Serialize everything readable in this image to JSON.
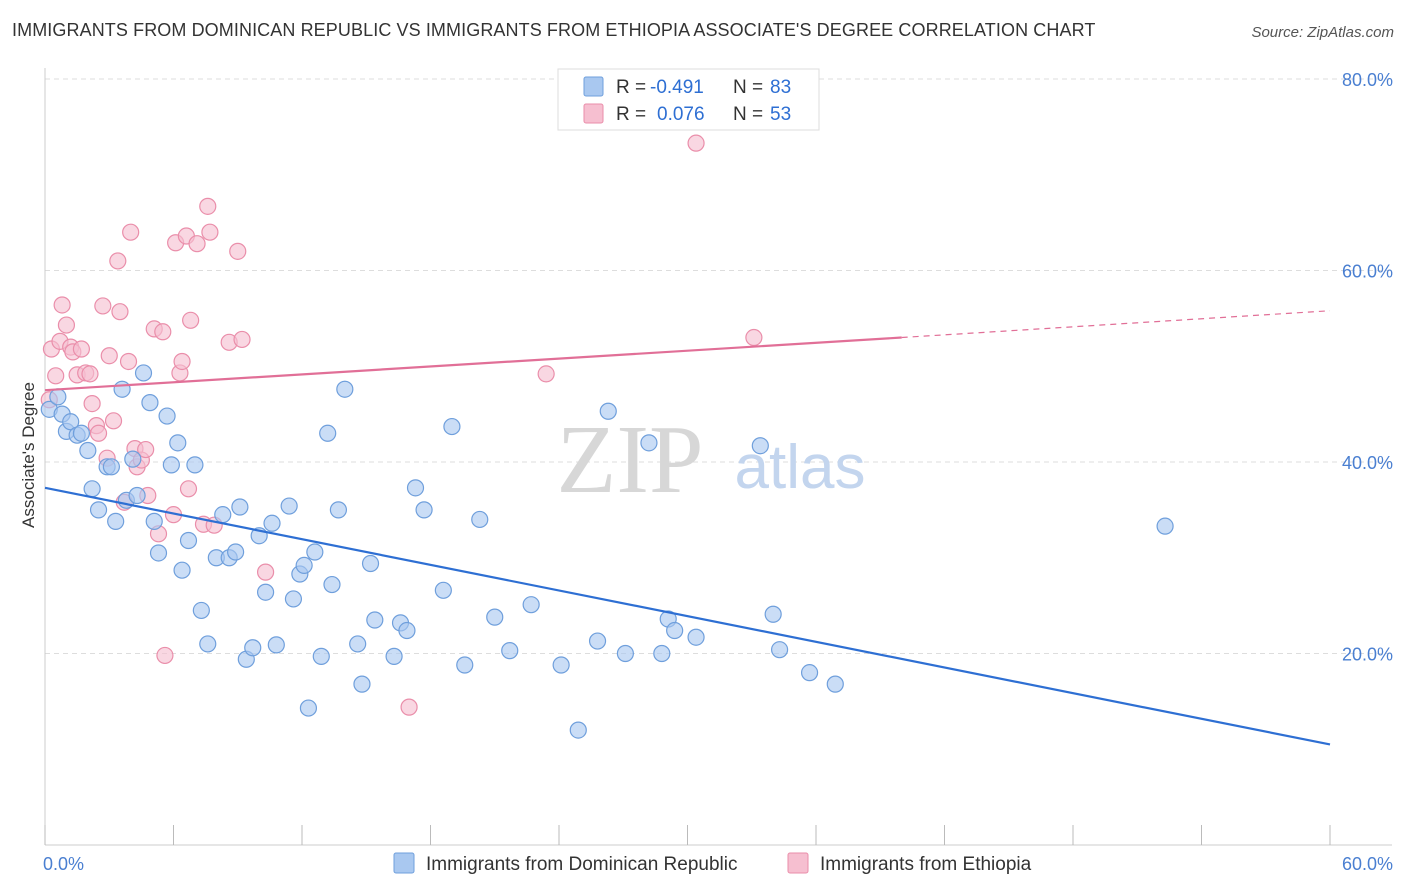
{
  "title": "IMMIGRANTS FROM DOMINICAN REPUBLIC VS IMMIGRANTS FROM ETHIOPIA ASSOCIATE'S DEGREE CORRELATION CHART",
  "source": "Source: ZipAtlas.com",
  "watermark": {
    "part1": "ZIP",
    "part2": "atlas"
  },
  "legend_box": {
    "rows": [
      {
        "r_label": "R =",
        "r_value": "-0.491",
        "n_label": "N =",
        "n_value": "83"
      },
      {
        "r_label": "R =",
        "r_value": "0.076",
        "n_label": "N =",
        "n_value": "53"
      }
    ]
  },
  "chart_data": {
    "type": "scatter",
    "title": "IMMIGRANTS FROM DOMINICAN REPUBLIC VS IMMIGRANTS FROM ETHIOPIA ASSOCIATE'S DEGREE CORRELATION CHART",
    "xlabel": "",
    "ylabel": "Associate's Degree",
    "xlim": [
      0,
      60
    ],
    "ylim": [
      0,
      80
    ],
    "x_tick_labels": [
      "0.0%",
      "60.0%"
    ],
    "y_ticks": [
      20,
      40,
      60,
      80
    ],
    "y_tick_labels": [
      "20.0%",
      "40.0%",
      "60.0%",
      "80.0%"
    ],
    "grid": true,
    "legend_position": "bottom",
    "colors": {
      "blue_fill": "#a9c8f0",
      "blue_stroke": "#6f9fdc",
      "blue_line": "#2e6fd3",
      "pink_fill": "#f6bfd0",
      "pink_stroke": "#ea8eaa",
      "pink_line": "#e16f97",
      "tick_text": "#4a7fd1",
      "grid": "#dddddd"
    },
    "series": [
      {
        "name": "Immigrants from Dominican Republic",
        "color": "#a9c8f0",
        "r": -0.491,
        "n": 83,
        "trend": {
          "x0": 0,
          "y0": 37.3,
          "x1": 60,
          "y1": 10.5
        },
        "points": [
          [
            0.2,
            45.5
          ],
          [
            0.6,
            46.8
          ],
          [
            0.8,
            45.0
          ],
          [
            1.0,
            43.2
          ],
          [
            1.2,
            44.2
          ],
          [
            1.5,
            42.8
          ],
          [
            1.7,
            43.0
          ],
          [
            2.0,
            41.2
          ],
          [
            2.2,
            37.2
          ],
          [
            2.5,
            35.0
          ],
          [
            2.9,
            39.5
          ],
          [
            3.1,
            39.5
          ],
          [
            3.3,
            33.8
          ],
          [
            3.6,
            47.6
          ],
          [
            3.8,
            36.0
          ],
          [
            4.1,
            40.3
          ],
          [
            4.3,
            36.5
          ],
          [
            4.6,
            49.3
          ],
          [
            4.9,
            46.2
          ],
          [
            5.1,
            33.8
          ],
          [
            5.3,
            30.5
          ],
          [
            5.7,
            44.8
          ],
          [
            5.9,
            39.7
          ],
          [
            6.2,
            42.0
          ],
          [
            6.4,
            28.7
          ],
          [
            6.7,
            31.8
          ],
          [
            7.0,
            39.7
          ],
          [
            7.3,
            24.5
          ],
          [
            7.6,
            21.0
          ],
          [
            8.0,
            30.0
          ],
          [
            8.3,
            34.5
          ],
          [
            8.6,
            30.0
          ],
          [
            8.9,
            30.6
          ],
          [
            9.1,
            35.3
          ],
          [
            9.4,
            19.4
          ],
          [
            9.7,
            20.6
          ],
          [
            10.0,
            32.3
          ],
          [
            10.3,
            26.4
          ],
          [
            10.6,
            33.6
          ],
          [
            10.8,
            20.9
          ],
          [
            11.4,
            35.4
          ],
          [
            11.6,
            25.7
          ],
          [
            11.9,
            28.3
          ],
          [
            12.1,
            29.2
          ],
          [
            12.3,
            14.3
          ],
          [
            12.6,
            30.6
          ],
          [
            12.9,
            19.7
          ],
          [
            13.2,
            43.0
          ],
          [
            13.4,
            27.2
          ],
          [
            13.7,
            35.0
          ],
          [
            14.0,
            47.6
          ],
          [
            14.6,
            21.0
          ],
          [
            14.8,
            16.8
          ],
          [
            15.2,
            29.4
          ],
          [
            15.4,
            23.5
          ],
          [
            16.3,
            19.7
          ],
          [
            16.6,
            23.2
          ],
          [
            16.9,
            22.4
          ],
          [
            17.3,
            37.3
          ],
          [
            17.7,
            35.0
          ],
          [
            18.6,
            26.6
          ],
          [
            19.0,
            43.7
          ],
          [
            19.6,
            18.8
          ],
          [
            20.3,
            34.0
          ],
          [
            21.0,
            23.8
          ],
          [
            21.7,
            20.3
          ],
          [
            22.7,
            25.1
          ],
          [
            24.1,
            18.8
          ],
          [
            24.9,
            12.0
          ],
          [
            25.8,
            21.3
          ],
          [
            26.3,
            45.3
          ],
          [
            27.1,
            20.0
          ],
          [
            28.2,
            42.0
          ],
          [
            28.8,
            20.0
          ],
          [
            29.1,
            23.6
          ],
          [
            29.4,
            22.4
          ],
          [
            30.4,
            21.7
          ],
          [
            33.4,
            41.7
          ],
          [
            34.0,
            24.1
          ],
          [
            34.3,
            20.4
          ],
          [
            35.7,
            18.0
          ],
          [
            36.9,
            16.8
          ],
          [
            52.3,
            33.3
          ]
        ]
      },
      {
        "name": "Immigrants from Ethiopia",
        "color": "#f6bfd0",
        "r": 0.076,
        "n": 53,
        "trend": {
          "x0": 0,
          "y0": 47.5,
          "x1": 40,
          "y1": 53.0,
          "dash_to_x": 60,
          "dash_to_y": 55.8
        },
        "points": [
          [
            0.2,
            46.5
          ],
          [
            0.3,
            51.8
          ],
          [
            0.5,
            49.0
          ],
          [
            0.7,
            52.6
          ],
          [
            0.8,
            56.4
          ],
          [
            1.0,
            54.3
          ],
          [
            1.2,
            52.0
          ],
          [
            1.3,
            51.5
          ],
          [
            1.5,
            49.1
          ],
          [
            1.7,
            51.8
          ],
          [
            1.9,
            49.3
          ],
          [
            2.1,
            49.2
          ],
          [
            2.2,
            46.1
          ],
          [
            2.4,
            43.8
          ],
          [
            2.5,
            43.0
          ],
          [
            2.7,
            56.3
          ],
          [
            2.9,
            40.4
          ],
          [
            3.0,
            51.1
          ],
          [
            3.2,
            44.3
          ],
          [
            3.4,
            61.0
          ],
          [
            3.5,
            55.7
          ],
          [
            3.7,
            35.8
          ],
          [
            3.9,
            50.5
          ],
          [
            4.0,
            64.0
          ],
          [
            4.2,
            41.4
          ],
          [
            4.3,
            39.5
          ],
          [
            4.5,
            40.2
          ],
          [
            4.7,
            41.3
          ],
          [
            4.8,
            36.5
          ],
          [
            5.1,
            53.9
          ],
          [
            5.3,
            32.5
          ],
          [
            5.5,
            53.6
          ],
          [
            5.6,
            19.8
          ],
          [
            6.0,
            34.5
          ],
          [
            6.1,
            62.9
          ],
          [
            6.3,
            49.3
          ],
          [
            6.4,
            50.5
          ],
          [
            6.6,
            63.6
          ],
          [
            6.7,
            37.2
          ],
          [
            6.8,
            54.8
          ],
          [
            7.1,
            62.8
          ],
          [
            7.4,
            33.5
          ],
          [
            7.6,
            66.7
          ],
          [
            7.7,
            64.0
          ],
          [
            7.9,
            33.4
          ],
          [
            8.6,
            52.5
          ],
          [
            9.0,
            62.0
          ],
          [
            9.2,
            52.8
          ],
          [
            10.3,
            28.5
          ],
          [
            17.0,
            14.4
          ],
          [
            23.4,
            49.2
          ],
          [
            30.4,
            73.3
          ],
          [
            33.1,
            53.0
          ]
        ]
      }
    ]
  }
}
